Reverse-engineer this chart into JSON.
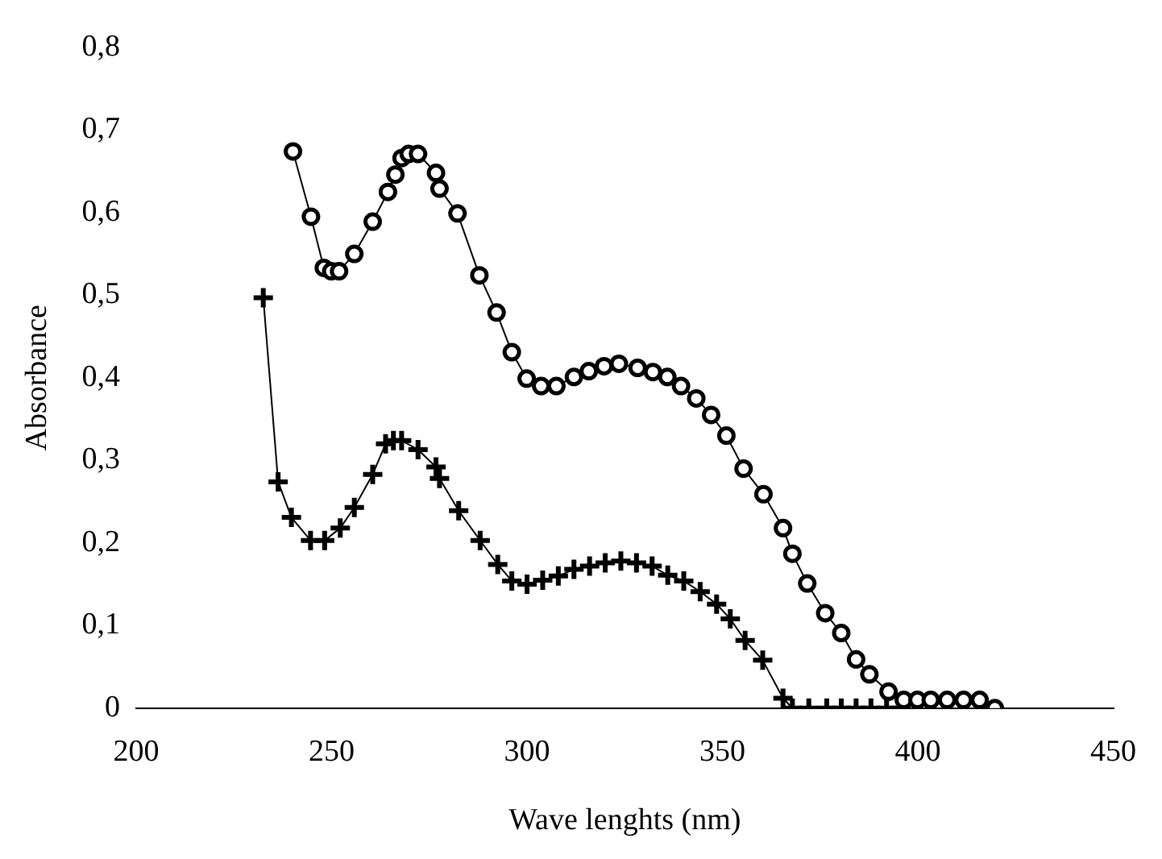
{
  "chart_data": {
    "type": "line",
    "xlabel": "Wave lenghts (nm)",
    "ylabel": "Absorbance",
    "xlim": [
      200,
      450
    ],
    "xticks": [
      200,
      250,
      300,
      350,
      400,
      450
    ],
    "ylim": [
      0,
      0.8
    ],
    "yticks": [
      {
        "value": 0,
        "label": "0"
      },
      {
        "value": 0.1,
        "label": "0,1"
      },
      {
        "value": 0.2,
        "label": "0,2"
      },
      {
        "value": 0.3,
        "label": "0,3"
      },
      {
        "value": 0.4,
        "label": "0,4"
      },
      {
        "value": 0.5,
        "label": "0,5"
      },
      {
        "value": 0.6,
        "label": "0,6"
      },
      {
        "value": 0.7,
        "label": "0,7"
      },
      {
        "value": 0.8,
        "label": "0,8"
      }
    ],
    "grid": false,
    "legend": false,
    "series": [
      {
        "color": "#000000",
        "marker": "circle",
        "x": [
          240.1,
          244.7,
          248.0,
          249.9,
          251.9,
          255.8,
          260.5,
          264.4,
          266.3,
          267.9,
          269.7,
          272.1,
          276.7,
          277.6,
          282.2,
          287.8,
          292.2,
          296.1,
          299.9,
          303.6,
          307.5,
          312.0,
          315.8,
          319.7,
          323.5,
          328.3,
          332.2,
          335.9,
          339.4,
          343.3,
          347.1,
          351.0,
          355.4,
          360.5,
          365.5,
          367.9,
          371.7,
          376.3,
          380.4,
          384.2,
          387.6,
          392.5,
          396.4,
          399.9,
          403.3,
          407.5,
          411.7,
          415.8,
          419.7
        ],
        "values": [
          0.674,
          0.595,
          0.533,
          0.529,
          0.529,
          0.55,
          0.589,
          0.625,
          0.646,
          0.666,
          0.671,
          0.671,
          0.648,
          0.629,
          0.599,
          0.524,
          0.479,
          0.431,
          0.399,
          0.39,
          0.39,
          0.401,
          0.408,
          0.414,
          0.417,
          0.412,
          0.407,
          0.401,
          0.39,
          0.375,
          0.355,
          0.33,
          0.29,
          0.259,
          0.218,
          0.187,
          0.151,
          0.115,
          0.091,
          0.059,
          0.041,
          0.02,
          0.01,
          0.01,
          0.01,
          0.01,
          0.01,
          0.01,
          0
        ]
      },
      {
        "color": "#000000",
        "marker": "cross",
        "x": [
          232.5,
          236.3,
          239.7,
          244.6,
          248.2,
          252.2,
          255.8,
          260.5,
          263.8,
          265.8,
          267.9,
          272.1,
          276.7,
          277.6,
          282.5,
          288.0,
          292.5,
          296.1,
          300.0,
          304.0,
          308.0,
          312.0,
          316.0,
          320.0,
          324.0,
          328.0,
          332.0,
          336.0,
          340.1,
          344.3,
          348.5,
          352.0,
          355.8,
          360.3,
          365.5,
          367.9,
          372.1,
          376.7,
          380.4,
          384.2,
          388.0,
          392.0,
          395.7
        ],
        "values": [
          0.497,
          0.274,
          0.231,
          0.203,
          0.203,
          0.218,
          0.243,
          0.283,
          0.32,
          0.324,
          0.324,
          0.313,
          0.292,
          0.278,
          0.239,
          0.203,
          0.174,
          0.154,
          0.15,
          0.155,
          0.16,
          0.168,
          0.172,
          0.176,
          0.178,
          0.176,
          0.172,
          0.161,
          0.154,
          0.141,
          0.126,
          0.108,
          0.082,
          0.058,
          0.012,
          0,
          0,
          0,
          0,
          0,
          0,
          0,
          0
        ]
      }
    ]
  }
}
